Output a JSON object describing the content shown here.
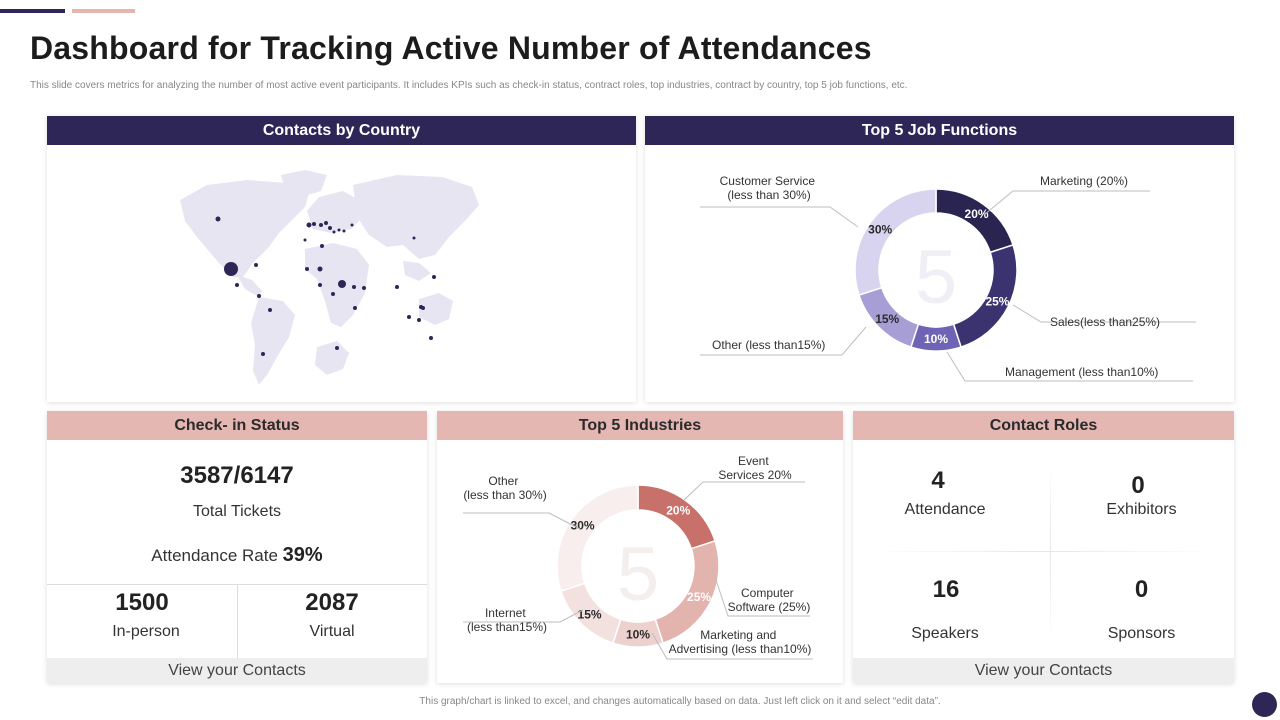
{
  "page": {
    "title": "Dashboard for Tracking Active Number of Attendances",
    "subtitle": "This slide covers metrics for analyzing the number of most active event participants. It includes KPIs such as check-in status, contract roles, top industries, contract by country, top 5 job functions, etc.",
    "footnote": "This graph/chart is linked to excel, and changes automatically based on data. Just left click on it and select “edit data”."
  },
  "colors": {
    "dark": "#2e2657",
    "pink": "#e4b7b2",
    "map": "#e8e5f3"
  },
  "contacts_by_country": {
    "title": "Contacts by Country"
  },
  "job_functions": {
    "title": "Top 5 Job Functions",
    "center_value": "5"
  },
  "check_in": {
    "title": "Check- in Status",
    "tickets_value": "3587/6147",
    "tickets_label": "Total Tickets",
    "rate_label": "Attendance Rate",
    "rate_value": "39%",
    "in_person_value": "1500",
    "in_person_label": "In-person",
    "virtual_value": "2087",
    "virtual_label": "Virtual",
    "footer": "View your Contacts"
  },
  "industries": {
    "title": "Top 5 Industries",
    "center_value": "5"
  },
  "contact_roles": {
    "title": "Contact Roles",
    "items": [
      {
        "value": "4",
        "label": "Attendance"
      },
      {
        "value": "0",
        "label": "Exhibitors"
      },
      {
        "value": "16",
        "label": "Speakers"
      },
      {
        "value": "0",
        "label": "Sponsors"
      }
    ],
    "footer": "View your Contacts"
  },
  "chart_data": [
    {
      "type": "pie",
      "title": "Top 5 Job Functions",
      "categories": [
        "Marketing",
        "Sales",
        "Management",
        "Other",
        "Customer Service"
      ],
      "values": [
        20,
        25,
        10,
        15,
        30
      ],
      "slice_labels": [
        "20%",
        "25%",
        "10%",
        "15%",
        "30%"
      ],
      "legend": [
        "Marketing (20%)",
        "Sales(less than25%)",
        "Management (less than10%)",
        "Other (less than15%)",
        "Customer Service (less than 30%)"
      ],
      "colors": [
        "#2a2550",
        "#3b3270",
        "#6f63b5",
        "#a79ed6",
        "#d8d3ee"
      ]
    },
    {
      "type": "pie",
      "title": "Top 5 Industries",
      "categories": [
        "Event Services",
        "Computer Software",
        "Marketing and Advertising",
        "Internet",
        "Other"
      ],
      "values": [
        20,
        25,
        10,
        15,
        30
      ],
      "slice_labels": [
        "20%",
        "25%",
        "10%",
        "15%",
        "30%"
      ],
      "legend": [
        "Event Services 20%",
        "Computer Software (25%)",
        "Marketing and Advertising (less than10%)",
        "Internet (less than15%)",
        "Other (less than 30%)"
      ],
      "colors": [
        "#c8706a",
        "#e3b3ae",
        "#ecd1ce",
        "#f3e1df",
        "#f8eeed"
      ]
    }
  ]
}
